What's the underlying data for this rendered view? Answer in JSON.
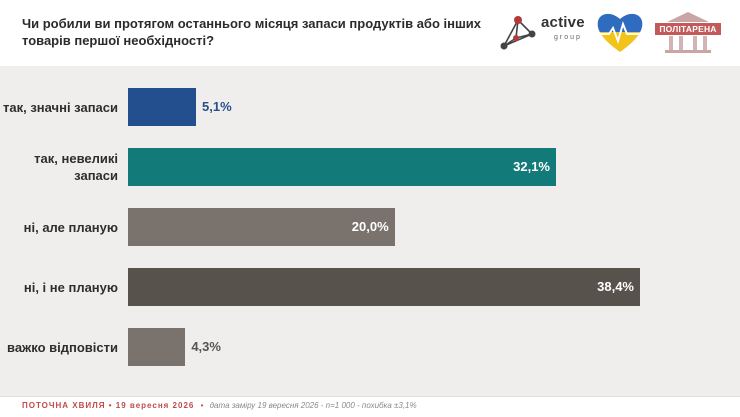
{
  "title": "Чи робили ви протягом останнього місяця запаси продуктів або інших товарів першої необхідності?",
  "logos": {
    "active": "active",
    "group": "group",
    "politarena": "ПОЛІТАРЕНА"
  },
  "chart_data": {
    "type": "bar",
    "orientation": "horizontal",
    "title": "Чи робили ви протягом останнього місяця запаси продуктів або інших товарів першої необхідності?",
    "xlabel": "",
    "ylabel": "",
    "xlim": [
      0,
      45
    ],
    "grid": false,
    "categories": [
      "так, значні запаси",
      "так, невеликі запаси",
      "ні, але планую",
      "ні, і не планую",
      "важко відповісти"
    ],
    "values": [
      5.1,
      32.1,
      20.0,
      38.4,
      4.3
    ],
    "value_labels": [
      "5,1%",
      "32,1%",
      "20,0%",
      "38,4%",
      "4,3%"
    ],
    "colors": [
      "#234f8f",
      "#137a7a",
      "#7a736d",
      "#58524d",
      "#7a736d"
    ],
    "label_colors": {
      "inside": "#ffffff",
      "outside": "#2a4f8c"
    }
  },
  "footer": {
    "wave": "ПОТОЧНА ХВИЛЯ • 19 вересня 2026",
    "separator": "•",
    "meta": "дата заміру 19 вересня 2026 - n=1 000 - похибка ±3,1%"
  }
}
